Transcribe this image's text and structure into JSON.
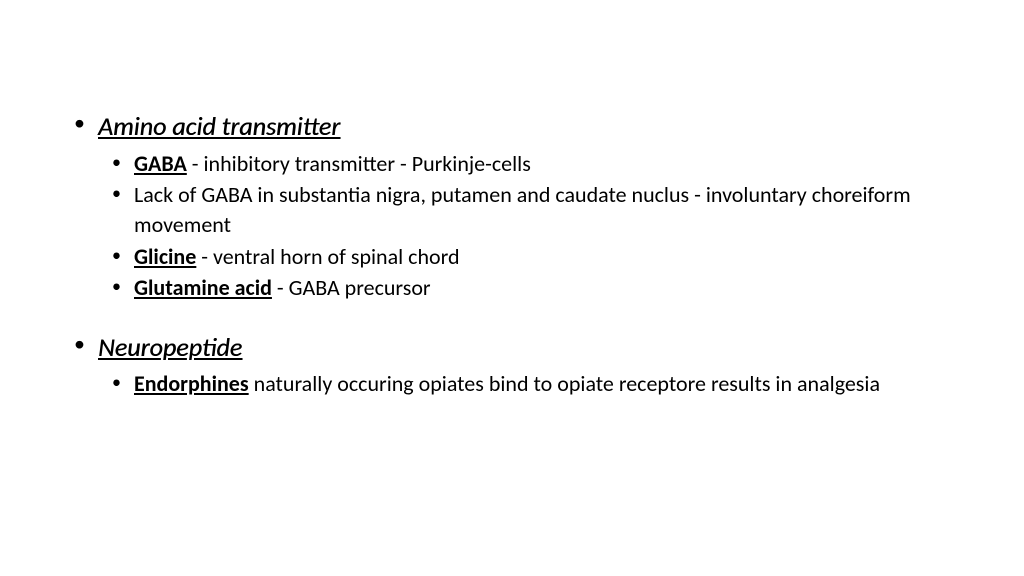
{
  "slide": {
    "background_color": "#ffffff",
    "text_color": "#000000",
    "font_family": "Calibri",
    "title_fontsize": 26,
    "body_fontsize": 22,
    "sections": [
      {
        "title": "Amino acid transmitter",
        "items": [
          {
            "term": "GABA",
            "rest": " - inhibitory transmitter - Purkinje-cells"
          },
          {
            "term": "",
            "rest": "Lack of GABA in substantia nigra, putamen and caudate nuclus - involuntary choreiform movement"
          },
          {
            "term": "Glicine",
            "rest": " - ventral horn of spinal chord"
          },
          {
            "term": "Glutamine acid",
            "rest": " - GABA precursor"
          }
        ]
      },
      {
        "title": "Neuropeptide",
        "items": [
          {
            "term": "Endorphines",
            "rest": " naturally occuring opiates bind to opiate receptore results in analgesia"
          }
        ]
      }
    ]
  }
}
